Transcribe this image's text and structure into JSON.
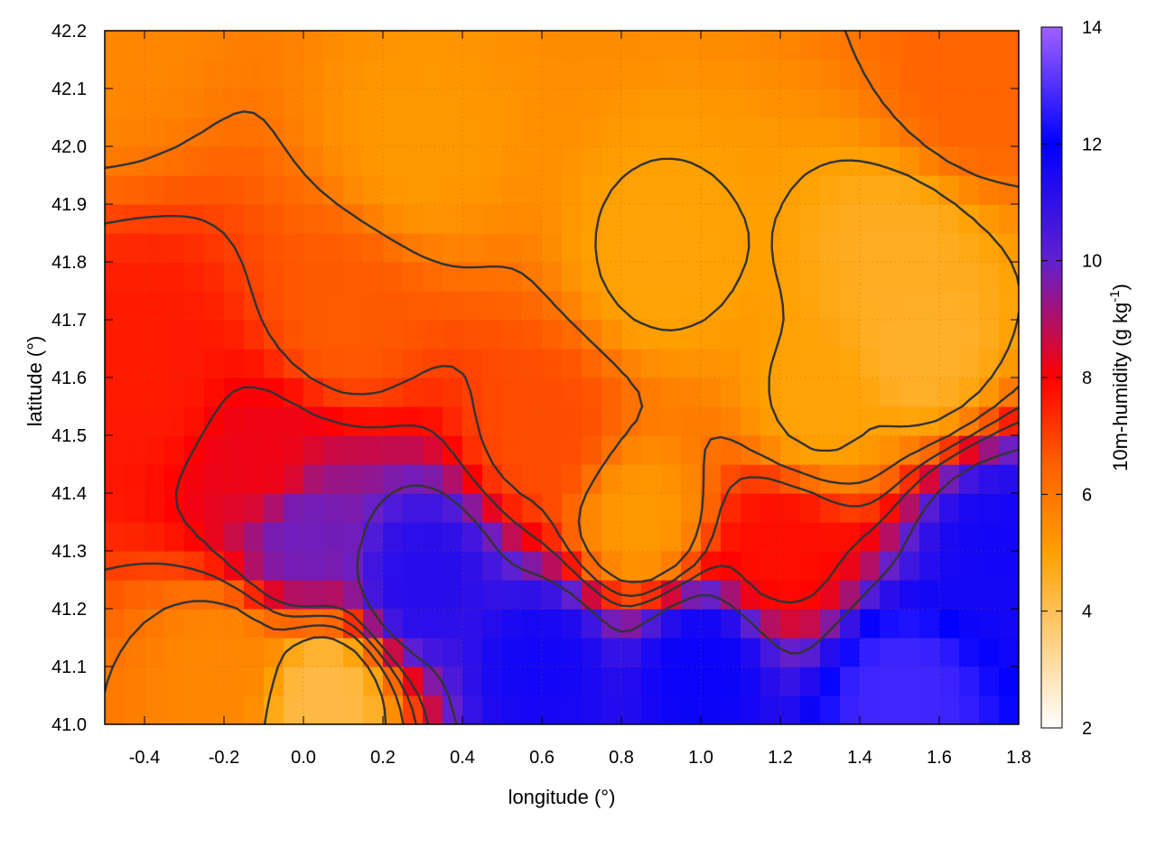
{
  "chart_data": {
    "type": "heatmap",
    "title": "",
    "xlabel": "longitude (°)",
    "ylabel": "latitude (°)",
    "colorbar_label": "10m-humidity (g kg",
    "colorbar_label_exponent": "-1",
    "colorbar_label_close": ")",
    "xlim": [
      -0.5,
      1.8
    ],
    "ylim": [
      41.0,
      42.2
    ],
    "zlim": [
      2,
      14
    ],
    "x_ticks": [
      "-0.4",
      "-0.2",
      "0.0",
      "0.2",
      "0.4",
      "0.6",
      "0.8",
      "1.0",
      "1.2",
      "1.4",
      "1.6",
      "1.8"
    ],
    "x_tick_values": [
      -0.4,
      -0.2,
      0.0,
      0.2,
      0.4,
      0.6,
      0.8,
      1.0,
      1.2,
      1.4,
      1.6,
      1.8
    ],
    "y_ticks": [
      "41.0",
      "41.1",
      "41.2",
      "41.3",
      "41.4",
      "41.5",
      "41.6",
      "41.7",
      "41.8",
      "41.9",
      "42.0",
      "42.1",
      "42.2"
    ],
    "y_tick_values": [
      41.0,
      41.1,
      41.2,
      41.3,
      41.4,
      41.5,
      41.6,
      41.7,
      41.8,
      41.9,
      42.0,
      42.1,
      42.2
    ],
    "colorbar_ticks": [
      "2",
      "4",
      "6",
      "8",
      "10",
      "12",
      "14"
    ],
    "colorbar_tick_values": [
      2,
      4,
      6,
      8,
      10,
      12,
      14
    ],
    "grid": true,
    "colormap": [
      "#ffffff",
      "#ffd080",
      "#ffa000",
      "#ff6000",
      "#ff0000",
      "#6020d0",
      "#0000ff",
      "#a060ff"
    ],
    "colormap_stops": [
      2,
      3.5,
      5,
      6.5,
      8,
      10,
      12,
      14
    ],
    "contour_color": "#333333",
    "field_regions": [
      {
        "lon": -0.5,
        "lat": 42.2,
        "value": 5.6
      },
      {
        "lon": 0.3,
        "lat": 42.0,
        "value": 5.2
      },
      {
        "lon": 0.9,
        "lat": 41.8,
        "value": 4.9
      },
      {
        "lon": 1.5,
        "lat": 41.8,
        "value": 4.6
      },
      {
        "lon": 1.7,
        "lat": 42.1,
        "value": 6.4
      },
      {
        "lon": -0.4,
        "lat": 41.6,
        "value": 7.6
      },
      {
        "lon": -0.1,
        "lat": 41.45,
        "value": 8.2
      },
      {
        "lon": 0.0,
        "lat": 41.33,
        "value": 9.8
      },
      {
        "lon": 0.3,
        "lat": 41.25,
        "value": 11.2
      },
      {
        "lon": 0.6,
        "lat": 41.1,
        "value": 11.6
      },
      {
        "lon": 1.0,
        "lat": 41.1,
        "value": 11.8
      },
      {
        "lon": 1.5,
        "lat": 41.05,
        "value": 12.8
      },
      {
        "lon": 1.75,
        "lat": 41.3,
        "value": 11.6
      },
      {
        "lon": -0.2,
        "lat": 41.1,
        "value": 5.6
      },
      {
        "lon": 0.05,
        "lat": 41.05,
        "value": 4.2
      },
      {
        "lon": 0.85,
        "lat": 41.35,
        "value": 5.2
      },
      {
        "lon": 1.2,
        "lat": 41.3,
        "value": 7.8
      },
      {
        "lon": 1.3,
        "lat": 41.55,
        "value": 4.9
      },
      {
        "lon": 1.55,
        "lat": 41.65,
        "value": 4.5
      },
      {
        "lon": 0.6,
        "lat": 41.5,
        "value": 6.8
      },
      {
        "lon": 0.1,
        "lat": 41.7,
        "value": 6.6
      }
    ]
  }
}
